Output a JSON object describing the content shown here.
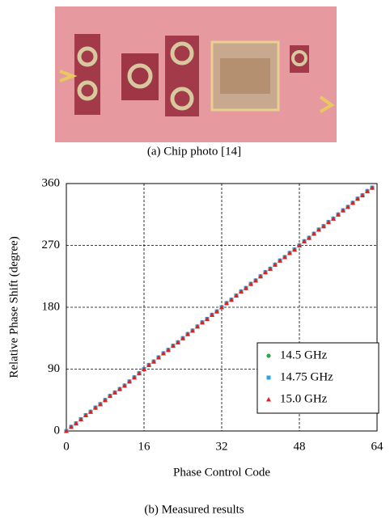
{
  "figure_a": {
    "caption": "(a) Chip photo [14]"
  },
  "chart_data": {
    "type": "scatter",
    "xlabel": "Phase Control Code",
    "ylabel": "Relative Phase Shift (degree)",
    "x": [
      0,
      1,
      2,
      3,
      4,
      5,
      6,
      7,
      8,
      9,
      10,
      11,
      12,
      13,
      14,
      15,
      16,
      17,
      18,
      19,
      20,
      21,
      22,
      23,
      24,
      25,
      26,
      27,
      28,
      29,
      30,
      31,
      32,
      33,
      34,
      35,
      36,
      37,
      38,
      39,
      40,
      41,
      42,
      43,
      44,
      45,
      46,
      47,
      48,
      49,
      50,
      51,
      52,
      53,
      54,
      55,
      56,
      57,
      58,
      59,
      60,
      61,
      62,
      63
    ],
    "series": [
      {
        "name": "14.5 GHz",
        "color": "#2ca84a",
        "marker": "circle",
        "values": [
          0,
          6,
          11,
          17,
          23,
          28,
          34,
          39,
          45,
          51,
          56,
          61,
          66,
          72,
          78,
          84,
          90,
          96,
          101,
          107,
          113,
          118,
          124,
          129,
          135,
          141,
          146,
          152,
          158,
          163,
          169,
          174,
          180,
          186,
          191,
          197,
          203,
          208,
          214,
          219,
          225,
          231,
          236,
          242,
          248,
          253,
          259,
          264,
          270,
          276,
          281,
          287,
          293,
          298,
          304,
          309,
          315,
          321,
          326,
          332,
          338,
          343,
          349,
          354
        ]
      },
      {
        "name": "14.75 GHz",
        "color": "#2aa6dd",
        "marker": "square",
        "values": [
          0,
          6,
          11,
          17,
          23,
          28,
          34,
          39,
          45,
          51,
          56,
          61,
          66,
          72,
          78,
          84,
          90,
          96,
          101,
          107,
          113,
          118,
          124,
          129,
          135,
          141,
          146,
          152,
          158,
          163,
          169,
          174,
          180,
          186,
          191,
          197,
          203,
          208,
          214,
          219,
          225,
          231,
          236,
          242,
          248,
          253,
          259,
          264,
          270,
          276,
          281,
          287,
          293,
          298,
          304,
          309,
          315,
          321,
          326,
          332,
          338,
          343,
          349,
          354
        ]
      },
      {
        "name": "15.0 GHz",
        "color": "#e3211c",
        "marker": "triangle",
        "values": [
          0,
          6,
          11,
          17,
          23,
          28,
          34,
          39,
          45,
          51,
          56,
          61,
          66,
          72,
          78,
          84,
          90,
          96,
          101,
          107,
          113,
          118,
          124,
          129,
          135,
          141,
          146,
          152,
          158,
          163,
          169,
          174,
          180,
          186,
          191,
          197,
          203,
          208,
          214,
          219,
          225,
          231,
          236,
          242,
          248,
          253,
          259,
          264,
          270,
          276,
          281,
          287,
          293,
          298,
          304,
          309,
          315,
          321,
          326,
          332,
          338,
          343,
          349,
          354
        ]
      }
    ],
    "xlim": [
      0,
      64
    ],
    "xticks": [
      0,
      16,
      32,
      48,
      64
    ],
    "ylim": [
      0,
      360
    ],
    "yticks": [
      0,
      90,
      180,
      270,
      360
    ],
    "grid": true,
    "legend": "lower right"
  },
  "figure_b": {
    "caption": "(b) Measured results"
  }
}
